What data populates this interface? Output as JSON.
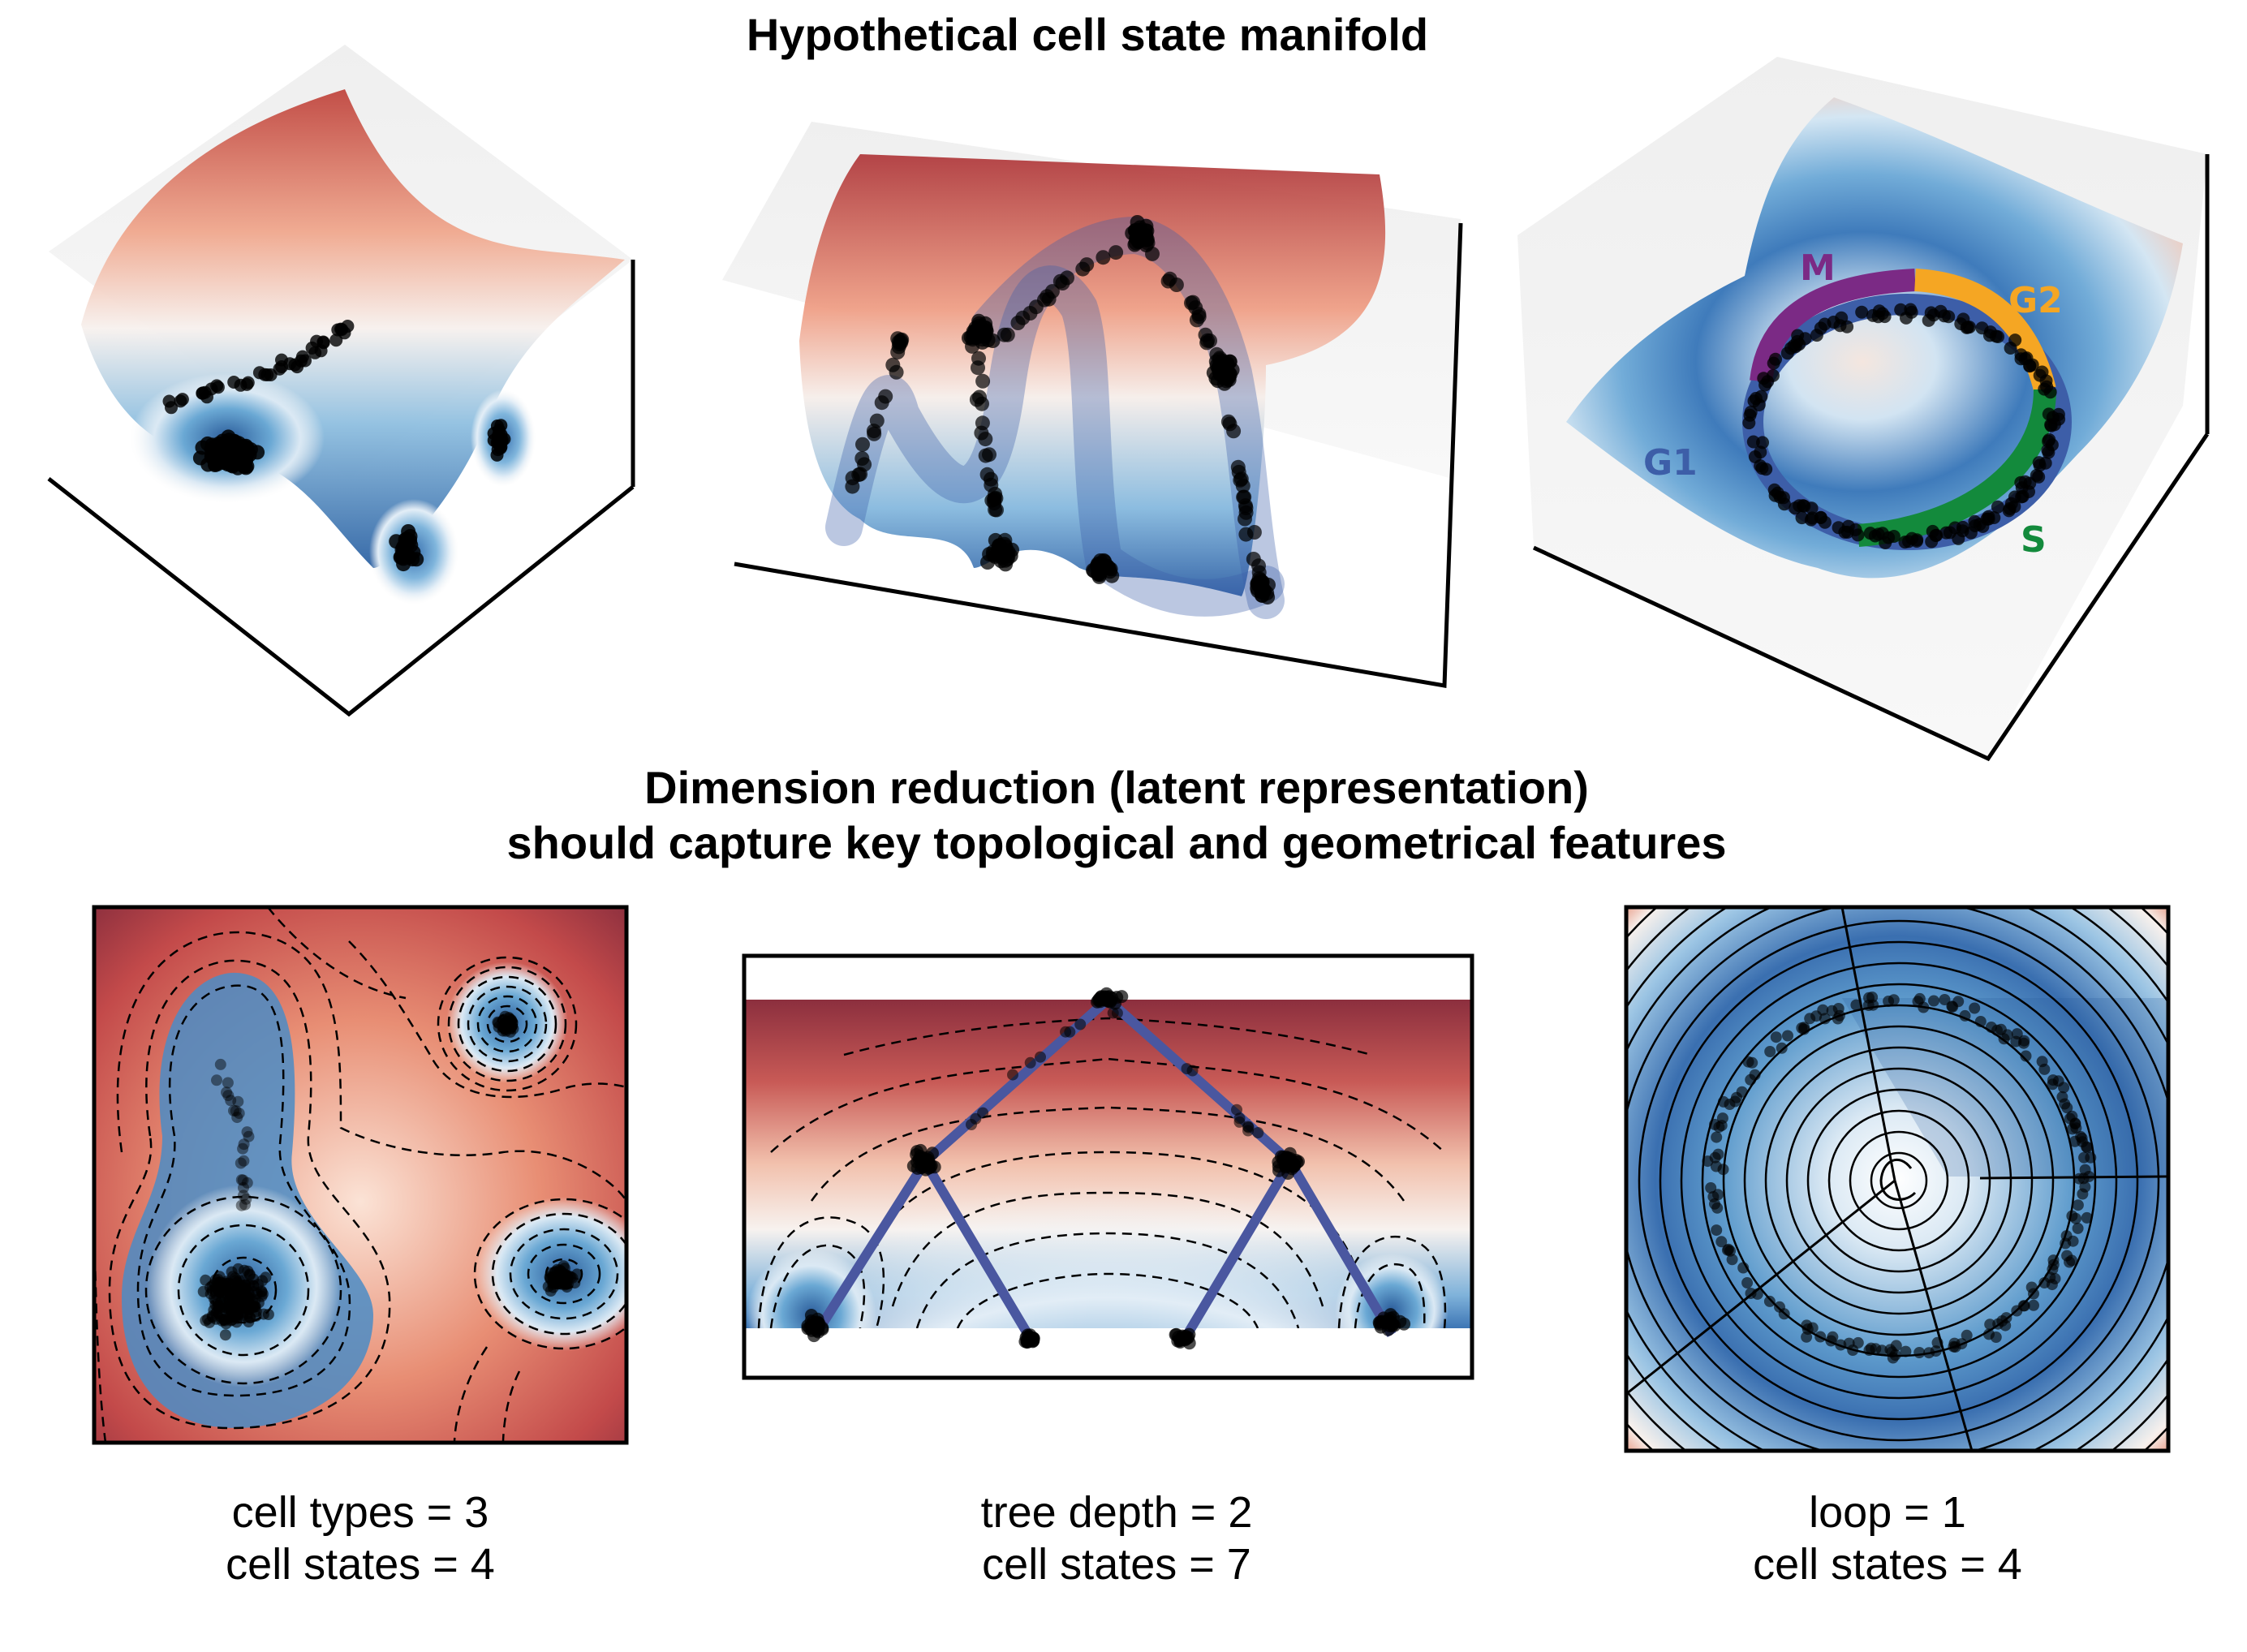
{
  "top_title": "Hypothetical cell state manifold",
  "bottom_title_line1": "Dimension reduction (latent representation)",
  "bottom_title_line2": "should capture key topological and geometrical features",
  "panels": [
    {
      "caption_line1": "cell types = 3",
      "caption_line2": "cell states = 4"
    },
    {
      "caption_line1": "tree depth = 2",
      "caption_line2": "cell states = 7"
    },
    {
      "caption_line1": "loop = 1",
      "caption_line2": "cell states = 4"
    }
  ],
  "cycle_phases": [
    {
      "label": "M",
      "color": "#7b2a85"
    },
    {
      "label": "G2",
      "color": "#f5a623"
    },
    {
      "label": "S",
      "color": "#138a3c"
    },
    {
      "label": "G1",
      "color": "#3d5ea8"
    }
  ],
  "colors": {
    "red_dark": "#8c2f3e",
    "red": "#d6604d",
    "white": "#f7f7f7",
    "blue": "#4393c3",
    "blue_dark": "#2b5c9a",
    "tree_path": "#4a57a0",
    "points": "#000000"
  }
}
